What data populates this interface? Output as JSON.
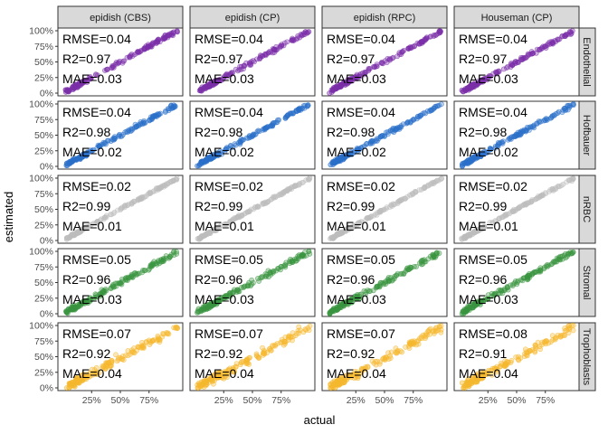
{
  "chart_data": {
    "type": "scatter",
    "xlabel": "actual",
    "ylabel": "estimated",
    "x_ticks": [
      "25%",
      "50%",
      "75%"
    ],
    "x_tick_values": [
      0.25,
      0.5,
      0.75
    ],
    "y_ticks": [
      "0%",
      "25%",
      "50%",
      "75%",
      "100%"
    ],
    "y_tick_values": [
      0,
      0.25,
      0.5,
      0.75,
      1.0
    ],
    "xlim": [
      0,
      1
    ],
    "ylim": [
      0,
      1
    ],
    "columns": [
      "epidish (CBS)",
      "epidish (CP)",
      "epidish (RPC)",
      "Houseman (CP)"
    ],
    "rows": [
      {
        "name": "Endothelial",
        "color": "#7B2FA8",
        "panels": [
          {
            "rmse": "RMSE=0.04",
            "r2": "R2=0.97",
            "mae": "MAE=0.03"
          },
          {
            "rmse": "RMSE=0.04",
            "r2": "R2=0.97",
            "mae": "MAE=0.03"
          },
          {
            "rmse": "RMSE=0.04",
            "r2": "R2=0.97",
            "mae": "MAE=0.03"
          },
          {
            "rmse": "RMSE=0.04",
            "r2": "R2=0.97",
            "mae": "MAE=0.03"
          }
        ]
      },
      {
        "name": "Hofbauer",
        "color": "#2A6FC9",
        "panels": [
          {
            "rmse": "RMSE=0.04",
            "r2": "R2=0.98",
            "mae": "MAE=0.02"
          },
          {
            "rmse": "RMSE=0.04",
            "r2": "R2=0.98",
            "mae": "MAE=0.02"
          },
          {
            "rmse": "RMSE=0.04",
            "r2": "R2=0.98",
            "mae": "MAE=0.02"
          },
          {
            "rmse": "RMSE=0.04",
            "r2": "R2=0.98",
            "mae": "MAE=0.02"
          }
        ]
      },
      {
        "name": "nRBC",
        "color": "#BDBDBD",
        "panels": [
          {
            "rmse": "RMSE=0.02",
            "r2": "R2=0.99",
            "mae": "MAE=0.01"
          },
          {
            "rmse": "RMSE=0.02",
            "r2": "R2=0.99",
            "mae": "MAE=0.01"
          },
          {
            "rmse": "RMSE=0.02",
            "r2": "R2=0.99",
            "mae": "MAE=0.01"
          },
          {
            "rmse": "RMSE=0.02",
            "r2": "R2=0.99",
            "mae": "MAE=0.01"
          }
        ]
      },
      {
        "name": "Stromal",
        "color": "#3A9440",
        "panels": [
          {
            "rmse": "RMSE=0.05",
            "r2": "R2=0.96",
            "mae": "MAE=0.03"
          },
          {
            "rmse": "RMSE=0.05",
            "r2": "R2=0.96",
            "mae": "MAE=0.03"
          },
          {
            "rmse": "RMSE=0.05",
            "r2": "R2=0.96",
            "mae": "MAE=0.03"
          },
          {
            "rmse": "RMSE=0.05",
            "r2": "R2=0.96",
            "mae": "MAE=0.03"
          }
        ]
      },
      {
        "name": "Trophoblasts",
        "color": "#F5B82E",
        "panels": [
          {
            "rmse": "RMSE=0.07",
            "r2": "R2=0.92",
            "mae": "MAE=0.04"
          },
          {
            "rmse": "RMSE=0.07",
            "r2": "R2=0.92",
            "mae": "MAE=0.04"
          },
          {
            "rmse": "RMSE=0.07",
            "r2": "R2=0.92",
            "mae": "MAE=0.04"
          },
          {
            "rmse": "RMSE=0.08",
            "r2": "R2=0.91",
            "mae": "MAE=0.04"
          }
        ]
      }
    ]
  }
}
